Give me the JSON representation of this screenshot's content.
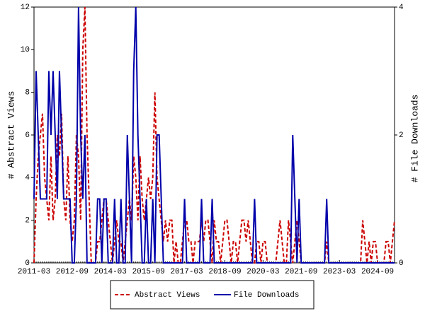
{
  "chart_data": {
    "type": "line",
    "ylabel": "# Abstract Views",
    "y2label": "# File Downloads",
    "categories": [
      "2011-03",
      null,
      null,
      null,
      null,
      null,
      null,
      null,
      null,
      null,
      null,
      null,
      null,
      null,
      null,
      null,
      null,
      null,
      "2012-09",
      null,
      null,
      null,
      null,
      null,
      null,
      null,
      null,
      null,
      null,
      null,
      null,
      null,
      null,
      null,
      null,
      null,
      "2014-03",
      null,
      null,
      null,
      null,
      null,
      null,
      null,
      null,
      null,
      null,
      null,
      null,
      null,
      null,
      null,
      null,
      null,
      "2015-09",
      null,
      null,
      null,
      null,
      null,
      null,
      null,
      null,
      null,
      null,
      null,
      null,
      null,
      null,
      null,
      null,
      null,
      "2017-03",
      null,
      null,
      null,
      null,
      null,
      null,
      null,
      null,
      null,
      null,
      null,
      null,
      null,
      null,
      null,
      null,
      null,
      "2018-09",
      null,
      null,
      null,
      null,
      null,
      null,
      null,
      null,
      null,
      null,
      null,
      null,
      null,
      null,
      null,
      null,
      null,
      "2020-03",
      null,
      null,
      null,
      null,
      null,
      null,
      null,
      null,
      null,
      null,
      null,
      null,
      null,
      null,
      null,
      null,
      null,
      "2021-09",
      null,
      null,
      null,
      null,
      null,
      null,
      null,
      null,
      null,
      null,
      null,
      null,
      null,
      null,
      null,
      null,
      null,
      "2023-03",
      null,
      null,
      null,
      null,
      null,
      null,
      null,
      null,
      null,
      null,
      null,
      null,
      null,
      null,
      null,
      null,
      null,
      "2024-09",
      null,
      null,
      null,
      null,
      null,
      null,
      null,
      null
    ],
    "series": [
      {
        "name": "Abstract Views",
        "color": "#cc0000",
        "dash": true,
        "values": [
          0,
          3,
          5,
          6,
          7,
          4,
          3,
          2,
          5,
          2,
          3,
          6,
          5,
          7,
          3,
          2,
          5,
          2,
          1,
          2,
          6,
          5,
          2,
          10,
          12,
          6,
          3,
          0,
          0,
          0,
          1,
          1,
          2,
          3,
          3,
          2,
          1,
          0,
          1,
          2,
          1,
          1,
          0,
          1,
          2,
          3,
          2,
          5,
          4,
          2,
          5,
          3,
          2,
          3,
          4,
          3,
          4,
          8,
          4,
          3,
          2,
          1,
          2,
          1,
          2,
          2,
          0,
          1,
          0,
          0,
          1,
          2,
          2,
          1,
          1,
          0,
          1,
          1,
          1,
          2,
          1,
          2,
          2,
          1,
          0,
          2,
          1,
          1,
          0,
          1,
          2,
          2,
          1,
          0,
          1,
          1,
          0,
          1,
          2,
          2,
          1,
          2,
          1,
          0,
          0,
          1,
          1,
          0,
          1,
          1,
          0,
          0,
          0,
          0,
          0,
          1,
          2,
          1,
          0,
          0,
          2,
          1,
          0,
          1,
          2,
          1,
          0,
          0,
          0,
          0,
          0,
          0,
          0,
          0,
          0,
          0,
          0,
          0,
          1,
          0,
          0,
          0,
          0,
          0,
          0,
          0,
          0,
          0,
          0,
          0,
          0,
          0,
          0,
          0,
          0,
          2,
          1,
          0,
          1,
          0,
          1,
          1,
          0,
          0,
          0,
          0,
          1,
          1,
          0,
          1,
          2
        ]
      },
      {
        "name": "File Downloads",
        "color": "#0000aa",
        "axis": "y2",
        "values": [
          1,
          3,
          2,
          1,
          1,
          1,
          1,
          3,
          2,
          3,
          2,
          1,
          3,
          2,
          1,
          1,
          1,
          1,
          0,
          0,
          1,
          4,
          2,
          1,
          2,
          0,
          0,
          0,
          0,
          0,
          1,
          1,
          0,
          1,
          1,
          0,
          0,
          0,
          1,
          0,
          0,
          1,
          0,
          0,
          2,
          1,
          0,
          3,
          4,
          2,
          1,
          0,
          0,
          1,
          0,
          0,
          1,
          0,
          2,
          2,
          1,
          0,
          0,
          0,
          0,
          0,
          0,
          0,
          0,
          0,
          0,
          1,
          0,
          0,
          0,
          0,
          0,
          0,
          0,
          1,
          0,
          0,
          0,
          0,
          1,
          0,
          0,
          0,
          0,
          0,
          0,
          0,
          0,
          0,
          0,
          0,
          0,
          0,
          0,
          0,
          0,
          0,
          0,
          0,
          1,
          0,
          0,
          0,
          0,
          0,
          0,
          0,
          0,
          0,
          0,
          0,
          0,
          0,
          0,
          0,
          0,
          0,
          2,
          1,
          0,
          1,
          0,
          0,
          0,
          0,
          0,
          0,
          0,
          0,
          0,
          0,
          0,
          0,
          1,
          0,
          0,
          0,
          0,
          0,
          0,
          0,
          0,
          0,
          0,
          0,
          0,
          0,
          0,
          0,
          0,
          0,
          0,
          0,
          0,
          0,
          0,
          0,
          0,
          0,
          0,
          0,
          0,
          0,
          0,
          0,
          0
        ]
      }
    ],
    "ylim": [
      0,
      12
    ],
    "yticks": [
      0,
      2,
      4,
      6,
      8,
      10,
      12
    ],
    "y2lim": [
      0,
      4
    ],
    "y2ticks": [
      0,
      2,
      4
    ],
    "grid": false
  }
}
